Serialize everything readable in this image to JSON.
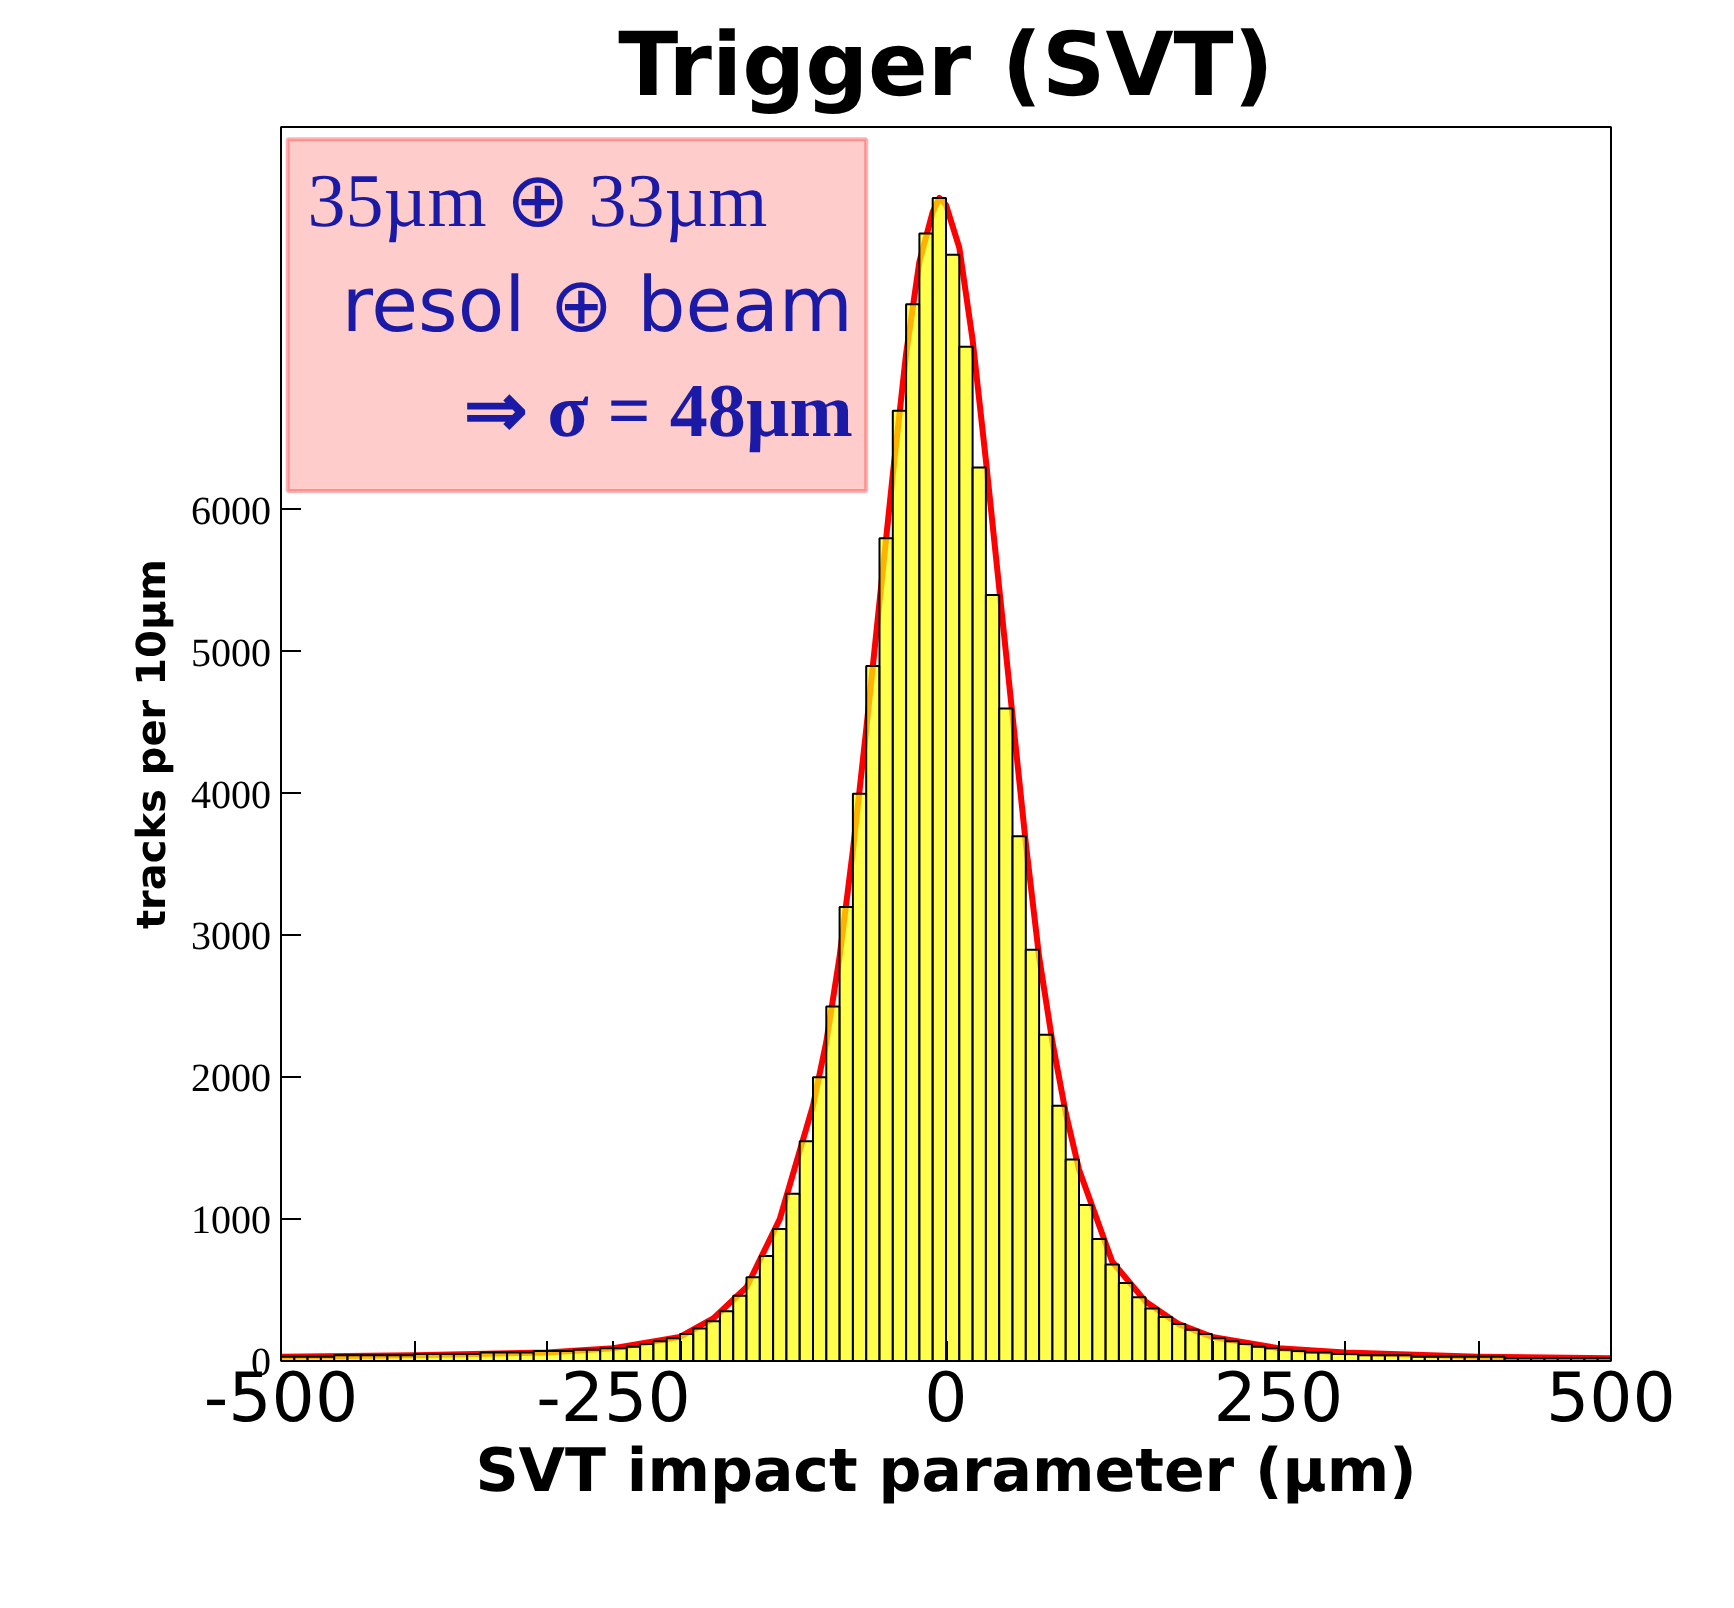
{
  "chart_data": {
    "type": "histogram",
    "title": "Trigger (SVT)",
    "xlabel": "SVT impact parameter (µm)",
    "ylabel": "tracks per 10µm",
    "annotations": [
      "35µm ⊕ 33µm",
      "resol ⊕ beam",
      "⇒ σ = 48µm"
    ],
    "bins": [
      -500,
      -490,
      -480,
      -470,
      -460,
      -450,
      -440,
      -430,
      -420,
      -410,
      -400,
      -390,
      -380,
      -370,
      -360,
      -350,
      -340,
      -330,
      -320,
      -310,
      -300,
      -290,
      -280,
      -270,
      -260,
      -250,
      -240,
      -230,
      -220,
      -210,
      -200,
      -190,
      -180,
      -170,
      -160,
      -150,
      -140,
      -130,
      -120,
      -110,
      -100,
      -90,
      -80,
      -70,
      -60,
      -50,
      -40,
      -30,
      -20,
      -10,
      0,
      10,
      20,
      30,
      40,
      50,
      60,
      70,
      80,
      90,
      100,
      110,
      120,
      130,
      140,
      150,
      160,
      170,
      180,
      190,
      200,
      210,
      220,
      230,
      240,
      250,
      260,
      270,
      280,
      290,
      300,
      310,
      320,
      330,
      340,
      350,
      360,
      370,
      380,
      390,
      400,
      410,
      420,
      430,
      440,
      450,
      460,
      470,
      480,
      490,
      500
    ],
    "series": [
      {
        "color": "#ffff00",
        "values": [
          30,
          30,
          30,
          30,
          40,
          40,
          40,
          40,
          40,
          40,
          50,
          50,
          50,
          50,
          50,
          60,
          60,
          60,
          60,
          70,
          70,
          70,
          80,
          80,
          90,
          90,
          100,
          120,
          140,
          160,
          190,
          230,
          280,
          350,
          460,
          590,
          740,
          930,
          1180,
          1550,
          2000,
          2500,
          3200,
          4000,
          4900,
          5800,
          6700,
          7450,
          7950,
          8200,
          7800,
          7150,
          6300,
          5400,
          4600,
          3700,
          2900,
          2300,
          1800,
          1420,
          1100,
          860,
          680,
          550,
          450,
          370,
          310,
          260,
          220,
          190,
          160,
          140,
          120,
          100,
          90,
          80,
          70,
          60,
          60,
          50,
          50,
          40,
          40,
          40,
          40,
          30,
          30,
          30,
          30,
          30,
          30,
          30,
          20,
          20,
          20,
          20,
          20,
          20,
          20,
          20
        ]
      },
      {
        "type": "line",
        "color": "#ff0000",
        "x": [
          -500,
          -400,
          -300,
          -250,
          -200,
          -175,
          -150,
          -125,
          -100,
          -90,
          -80,
          -70,
          -60,
          -50,
          -40,
          -30,
          -20,
          -10,
          -5,
          0,
          10,
          20,
          30,
          40,
          50,
          60,
          70,
          80,
          90,
          100,
          125,
          150,
          175,
          200,
          250,
          300,
          400,
          500
        ],
        "values": [
          30,
          40,
          60,
          90,
          170,
          300,
          520,
          1000,
          1800,
          2250,
          2850,
          3600,
          4450,
          5350,
          6250,
          7100,
          7750,
          8100,
          8200,
          8150,
          7850,
          7200,
          6350,
          5450,
          4550,
          3650,
          2850,
          2250,
          1750,
          1350,
          700,
          420,
          260,
          170,
          90,
          60,
          30,
          20
        ]
      }
    ],
    "xlim": [
      -500,
      500
    ],
    "xticks": [
      -500,
      {
        "value": -400,
        "label": null
      },
      {
        "value": -300,
        "label": null
      },
      -250,
      {
        "value": -200,
        "label": null
      },
      {
        "value": -100,
        "label": null
      },
      0,
      {
        "value": 100,
        "label": null
      },
      {
        "value": 200,
        "label": null
      },
      250,
      {
        "value": 300,
        "label": null
      },
      {
        "value": 400,
        "label": null
      },
      500
    ],
    "ylim": [
      0,
      8700
    ],
    "yticks": [
      0,
      1000,
      2000,
      3000,
      4000,
      5000,
      6000
    ],
    "grid": false
  }
}
